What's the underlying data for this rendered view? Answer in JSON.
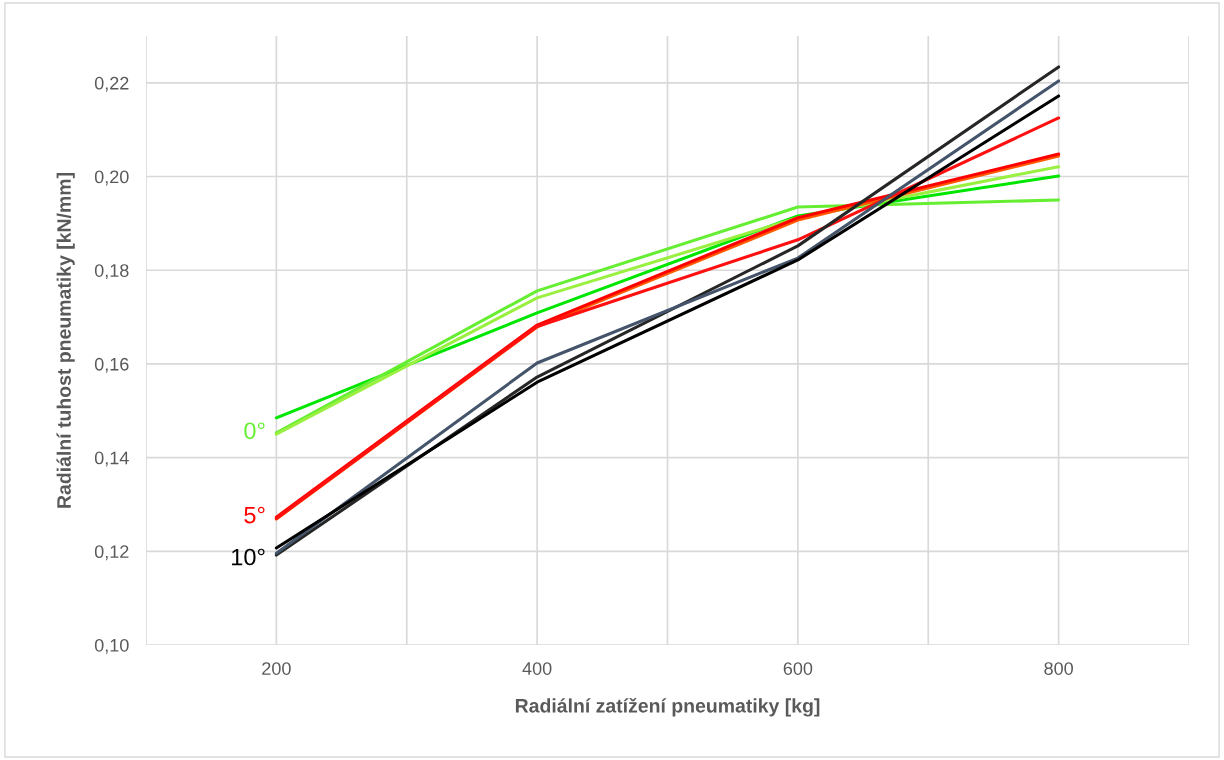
{
  "chart_data": {
    "type": "line",
    "xlabel": "Radiální zatížení pneumatiky [kg]",
    "ylabel": "Radiální tuhost pneumatiky [kN/mm]",
    "x": [
      200,
      400,
      600,
      800
    ],
    "xlim": [
      100,
      900
    ],
    "xticks": [
      {
        "value": 100,
        "label": null
      },
      200,
      {
        "value": 300,
        "label": null
      },
      400,
      {
        "value": 500,
        "label": null
      },
      600,
      {
        "value": 700,
        "label": null
      },
      800,
      {
        "value": 900,
        "label": null
      }
    ],
    "ylim": [
      0.1,
      0.23
    ],
    "yticks": [
      {
        "value": 0.1,
        "label": "0,10"
      },
      {
        "value": 0.12,
        "label": "0,12"
      },
      {
        "value": 0.14,
        "label": "0,14"
      },
      {
        "value": 0.16,
        "label": "0,16"
      },
      {
        "value": 0.18,
        "label": "0,18"
      },
      {
        "value": 0.2,
        "label": "0,20"
      },
      {
        "value": 0.22,
        "label": "0,22"
      }
    ],
    "grid": true,
    "marker": "none",
    "line_style": "solid",
    "series": [
      {
        "color": "#00e600",
        "values": [
          0.1485,
          0.1709,
          0.1916,
          0.2001
        ]
      },
      {
        "name": "0°",
        "color": "#66ee33",
        "values": [
          0.1453,
          0.1756,
          0.1935,
          0.195
        ]
      },
      {
        "color": "#99f040",
        "values": [
          0.145,
          0.1741,
          0.1912,
          0.2021
        ]
      },
      {
        "color": "#ff5a00",
        "values": [
          0.1269,
          0.1679,
          0.1907,
          0.2044
        ]
      },
      {
        "name": "5°",
        "color": "#ff0000",
        "values": [
          0.1273,
          0.1683,
          0.1912,
          0.2048
        ]
      },
      {
        "color": "#ff1010",
        "values": [
          0.127,
          0.168,
          0.1865,
          0.2125
        ]
      },
      {
        "color": "#262626",
        "values": [
          0.1192,
          0.1572,
          0.1852,
          0.2234
        ]
      },
      {
        "color": "#44546a",
        "values": [
          0.1196,
          0.1602,
          0.1826,
          0.2204
        ]
      },
      {
        "name": "10°",
        "color": "#000000",
        "values": [
          0.1207,
          0.1561,
          0.1822,
          0.2172
        ]
      }
    ]
  }
}
